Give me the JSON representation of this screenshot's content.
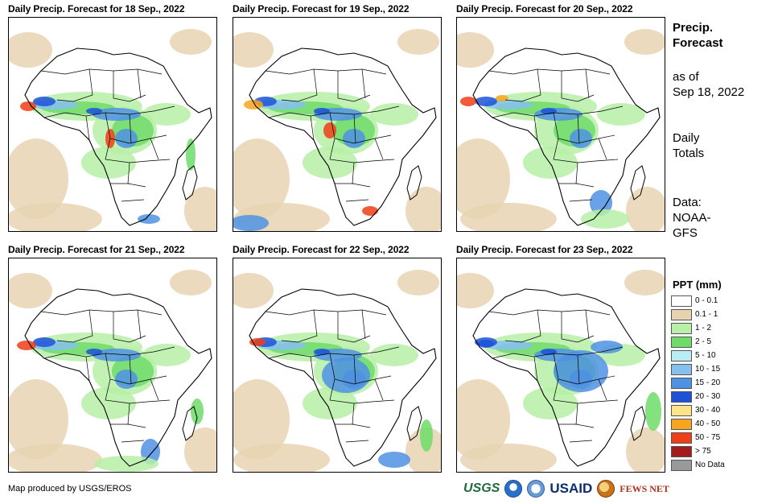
{
  "panels": [
    {
      "title": "Daily Precip. Forecast for 18  Sep., 2022"
    },
    {
      "title": "Daily Precip. Forecast for 19  Sep., 2022"
    },
    {
      "title": "Daily Precip. Forecast for 20  Sep., 2022"
    },
    {
      "title": "Daily Precip. Forecast for 21  Sep., 2022"
    },
    {
      "title": "Daily Precip. Forecast for 22  Sep., 2022"
    },
    {
      "title": "Daily Precip. Forecast for 23  Sep., 2022"
    }
  ],
  "side": {
    "heading_line1": "Precip.",
    "heading_line2": "Forecast",
    "asof_line1": "as of",
    "asof_line2": "Sep 18, 2022",
    "totals_line1": "Daily",
    "totals_line2": "Totals",
    "data_line1": "Data:",
    "data_line2": "NOAA-",
    "data_line3": "GFS"
  },
  "legend": {
    "title": "PPT (mm)",
    "items": [
      {
        "label": "0 - 0.1",
        "color": "#ffffff"
      },
      {
        "label": "0.1 - 1",
        "color": "#e8d3b1"
      },
      {
        "label": "1 - 2",
        "color": "#b7f0a6"
      },
      {
        "label": "2 - 5",
        "color": "#6fdc6a"
      },
      {
        "label": "5 - 10",
        "color": "#b9ecf3"
      },
      {
        "label": "10 - 15",
        "color": "#86c0ef"
      },
      {
        "label": "15 - 20",
        "color": "#4f92e3"
      },
      {
        "label": "20 - 30",
        "color": "#1d52d8"
      },
      {
        "label": "30 - 40",
        "color": "#fde48a"
      },
      {
        "label": "40 - 50",
        "color": "#f7a51f"
      },
      {
        "label": "50 - 75",
        "color": "#f03e16"
      },
      {
        "label": "> 75",
        "color": "#a41b1b"
      },
      {
        "label": "No Data",
        "color": "#999999"
      }
    ]
  },
  "credit": "Map produced by USGS/EROS",
  "logos": {
    "usgs": "USGS",
    "usaid": "USAID",
    "fews": "FEWS NET",
    "usgs_color": "#1f6b3a",
    "usaid_color": "#0a2d6e",
    "fews_color": "#b0321c"
  }
}
